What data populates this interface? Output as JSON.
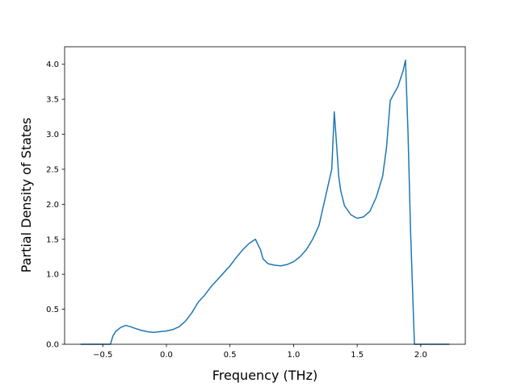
{
  "chart_data": {
    "type": "line",
    "title": "",
    "xlabel": "Frequency (THz)",
    "ylabel": "Partial Density of States",
    "xlim": [
      -0.8,
      2.35
    ],
    "ylim": [
      0.0,
      4.25
    ],
    "grid": false,
    "legend": "none",
    "xticks": [
      -0.5,
      0.0,
      0.5,
      1.0,
      1.5,
      2.0
    ],
    "xtick_labels": [
      "−0.5",
      "0.0",
      "0.5",
      "1.0",
      "1.5",
      "2.0"
    ],
    "yticks": [
      0.0,
      0.5,
      1.0,
      1.5,
      2.0,
      2.5,
      3.0,
      3.5,
      4.0
    ],
    "ytick_labels": [
      "0.0",
      "0.5",
      "1.0",
      "1.5",
      "2.0",
      "2.5",
      "3.0",
      "3.5",
      "4.0"
    ],
    "colors": {
      "line": "#1f77b4",
      "axes": "#000000"
    },
    "series": [
      {
        "x": [
          -0.67,
          -0.5,
          -0.44,
          -0.42,
          -0.4,
          -0.36,
          -0.32,
          -0.28,
          -0.25,
          -0.2,
          -0.15,
          -0.1,
          -0.05,
          0.0,
          0.05,
          0.1,
          0.15,
          0.2,
          0.25,
          0.3,
          0.35,
          0.4,
          0.45,
          0.5,
          0.55,
          0.6,
          0.65,
          0.7,
          0.74,
          0.76,
          0.8,
          0.85,
          0.9,
          0.95,
          1.0,
          1.05,
          1.1,
          1.15,
          1.2,
          1.25,
          1.3,
          1.32,
          1.34,
          1.355,
          1.37,
          1.4,
          1.45,
          1.5,
          1.55,
          1.6,
          1.65,
          1.7,
          1.73,
          1.76,
          1.78,
          1.82,
          1.86,
          1.88,
          1.9,
          1.92,
          1.95,
          1.97,
          2.0,
          2.05,
          2.1,
          2.22
        ],
        "y": [
          0.0,
          0.0,
          0.0,
          0.12,
          0.18,
          0.24,
          0.27,
          0.25,
          0.23,
          0.2,
          0.18,
          0.17,
          0.18,
          0.19,
          0.21,
          0.25,
          0.33,
          0.45,
          0.6,
          0.7,
          0.82,
          0.92,
          1.02,
          1.12,
          1.24,
          1.35,
          1.44,
          1.5,
          1.35,
          1.22,
          1.15,
          1.13,
          1.12,
          1.14,
          1.18,
          1.25,
          1.35,
          1.5,
          1.7,
          2.1,
          2.5,
          3.32,
          2.8,
          2.4,
          2.2,
          1.98,
          1.85,
          1.8,
          1.82,
          1.9,
          2.1,
          2.4,
          2.8,
          3.48,
          3.55,
          3.68,
          3.9,
          4.06,
          3.0,
          1.6,
          0.0,
          0.0,
          0.0,
          0.0,
          0.0,
          0.0
        ]
      }
    ]
  }
}
